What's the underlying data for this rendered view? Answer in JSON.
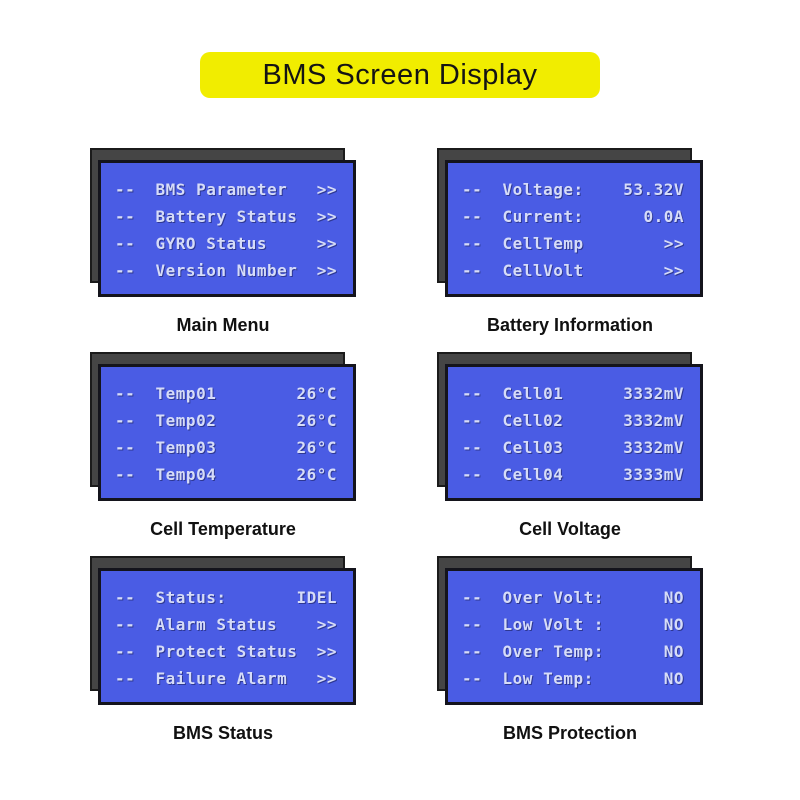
{
  "banner": {
    "title": "BMS Screen Display",
    "background_color": "#f1ed00",
    "text_color": "#141414"
  },
  "colors": {
    "page_background": "#ffffff",
    "lcd_background": "#4a5ce4",
    "lcd_text": "#d6dcf8",
    "lcd_border": "#14141c",
    "shadow_panel": "#454545",
    "caption_text": "#111111"
  },
  "screens": [
    {
      "caption": "Main Menu",
      "lines": [
        {
          "label": "--  BMS Parameter",
          "value": ">>"
        },
        {
          "label": "--  Battery Status",
          "value": ">>"
        },
        {
          "label": "--  GYRO Status",
          "value": ">>"
        },
        {
          "label": "--  Version Number",
          "value": ">>"
        }
      ]
    },
    {
      "caption": "Battery Information",
      "lines": [
        {
          "label": "--  Voltage:",
          "value": "53.32V"
        },
        {
          "label": "--  Current:",
          "value": "0.0A"
        },
        {
          "label": "--  CellTemp",
          "value": ">>"
        },
        {
          "label": "--  CellVolt",
          "value": ">>"
        }
      ]
    },
    {
      "caption": "Cell Temperature",
      "lines": [
        {
          "label": "--  Temp01",
          "value": "26°C"
        },
        {
          "label": "--  Temp02",
          "value": "26°C"
        },
        {
          "label": "--  Temp03",
          "value": "26°C"
        },
        {
          "label": "--  Temp04",
          "value": "26°C"
        }
      ]
    },
    {
      "caption": "Cell Voltage",
      "lines": [
        {
          "label": "--  Cell01",
          "value": "3332mV"
        },
        {
          "label": "--  Cell02",
          "value": "3332mV"
        },
        {
          "label": "--  Cell03",
          "value": "3332mV"
        },
        {
          "label": "--  Cell04",
          "value": "3333mV"
        }
      ]
    },
    {
      "caption": "BMS Status",
      "lines": [
        {
          "label": "--  Status:",
          "value": "IDEL"
        },
        {
          "label": "--  Alarm Status",
          "value": ">>"
        },
        {
          "label": "--  Protect Status",
          "value": ">>"
        },
        {
          "label": "--  Failure Alarm",
          "value": ">>"
        }
      ]
    },
    {
      "caption": "BMS Protection",
      "lines": [
        {
          "label": "--  Over Volt:",
          "value": "NO"
        },
        {
          "label": "--  Low Volt :",
          "value": "NO"
        },
        {
          "label": "--  Over Temp:",
          "value": "NO"
        },
        {
          "label": "--  Low Temp:",
          "value": "NO"
        }
      ]
    }
  ]
}
